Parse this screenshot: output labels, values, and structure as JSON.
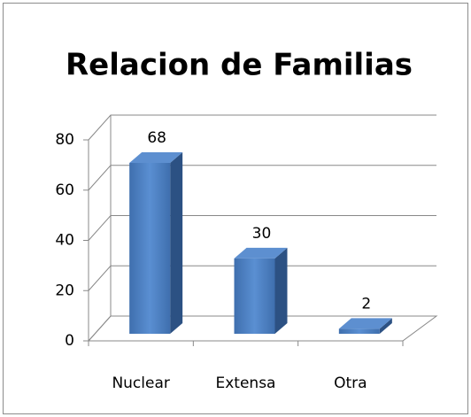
{
  "chart_data": {
    "type": "bar3d",
    "title": "Relacion de Familias",
    "categories": [
      "Nuclear",
      "Extensa",
      "Otra"
    ],
    "values": [
      68,
      30,
      2
    ],
    "color": "#4a7ebb",
    "ylim": [
      0,
      80
    ],
    "yticks": [
      0,
      20,
      40,
      60,
      80
    ],
    "grid": true
  }
}
